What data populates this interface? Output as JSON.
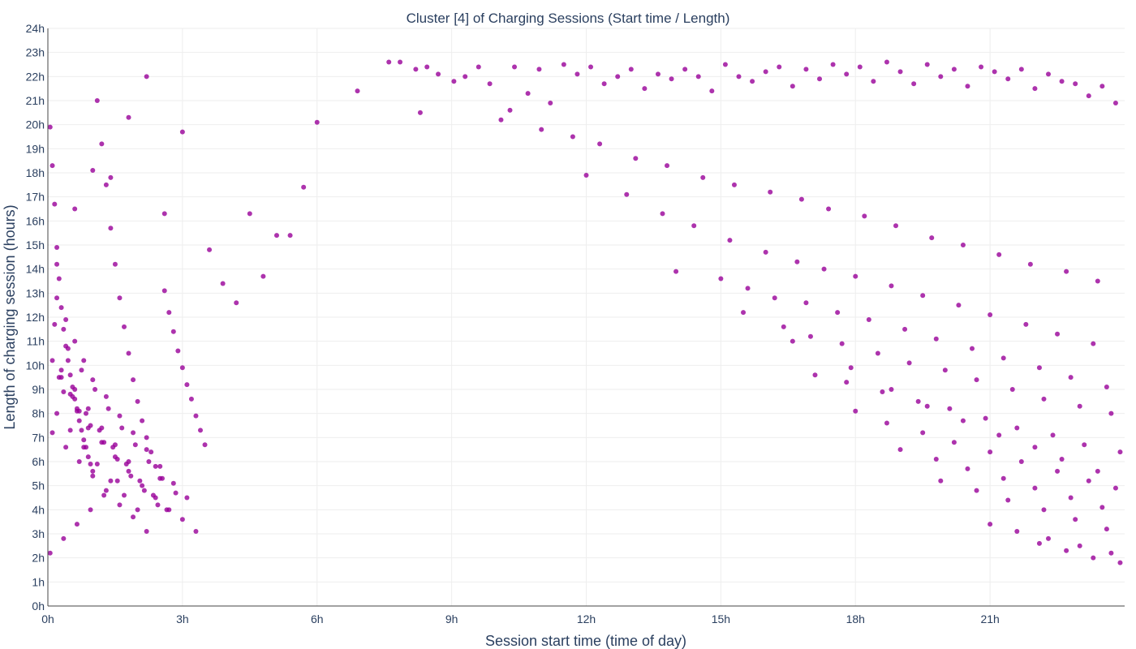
{
  "chart_data": {
    "type": "scatter",
    "title": "Cluster [4] of Charging Sessions (Start time / Length)",
    "xlabel": "Session start time (time of day)",
    "ylabel": "Length of charging session (hours)",
    "xlim": [
      0,
      24
    ],
    "ylim": [
      0,
      24
    ],
    "x_ticks": [
      {
        "value": 0,
        "label": "0h"
      },
      {
        "value": 3,
        "label": "3h"
      },
      {
        "value": 6,
        "label": "6h"
      },
      {
        "value": 9,
        "label": "9h"
      },
      {
        "value": 12,
        "label": "12h"
      },
      {
        "value": 15,
        "label": "15h"
      },
      {
        "value": 18,
        "label": "18h"
      },
      {
        "value": 21,
        "label": "21h"
      }
    ],
    "y_ticks": [
      {
        "value": 0,
        "label": "0h"
      },
      {
        "value": 1,
        "label": "1h"
      },
      {
        "value": 2,
        "label": "2h"
      },
      {
        "value": 3,
        "label": "3h"
      },
      {
        "value": 4,
        "label": "4h"
      },
      {
        "value": 5,
        "label": "5h"
      },
      {
        "value": 6,
        "label": "6h"
      },
      {
        "value": 7,
        "label": "7h"
      },
      {
        "value": 8,
        "label": "8h"
      },
      {
        "value": 9,
        "label": "9h"
      },
      {
        "value": 10,
        "label": "10h"
      },
      {
        "value": 11,
        "label": "11h"
      },
      {
        "value": 12,
        "label": "12h"
      },
      {
        "value": 13,
        "label": "13h"
      },
      {
        "value": 14,
        "label": "14h"
      },
      {
        "value": 15,
        "label": "15h"
      },
      {
        "value": 16,
        "label": "16h"
      },
      {
        "value": 17,
        "label": "17h"
      },
      {
        "value": 18,
        "label": "18h"
      },
      {
        "value": 19,
        "label": "19h"
      },
      {
        "value": 20,
        "label": "20h"
      },
      {
        "value": 21,
        "label": "21h"
      },
      {
        "value": 22,
        "label": "22h"
      },
      {
        "value": 23,
        "label": "23h"
      },
      {
        "value": 24,
        "label": "24h"
      }
    ],
    "grid": true,
    "marker_color": "#990099",
    "series": [
      {
        "x": [
          7.6,
          7.85,
          8.2,
          8.45,
          8.7,
          9.05,
          9.3,
          9.6,
          9.85,
          10.1,
          10.4,
          10.7,
          10.95,
          11.2,
          11.5,
          11.8,
          12.1,
          12.4,
          12.7,
          13.0,
          13.3,
          13.6,
          13.9,
          14.2,
          14.5,
          14.8,
          15.1,
          15.4,
          15.7,
          16.0,
          16.3,
          16.6,
          16.9,
          17.2,
          17.5,
          17.8,
          18.1,
          18.4,
          18.7,
          19.0,
          19.3,
          19.6,
          19.9,
          20.2,
          20.5,
          20.8,
          21.1,
          21.4,
          21.7,
          22.0,
          22.3,
          22.6,
          22.9,
          23.2,
          23.5,
          23.8,
          10.3,
          11.0,
          11.7,
          12.3,
          13.1,
          13.8,
          14.6,
          15.3,
          16.1,
          16.8,
          17.4,
          18.2,
          18.9,
          19.7,
          20.4,
          21.2,
          21.9,
          22.7,
          23.4,
          12.0,
          12.9,
          13.7,
          14.4,
          15.2,
          16.0,
          16.7,
          17.3,
          18.0,
          18.8,
          19.5,
          20.3,
          21.0,
          21.8,
          22.5,
          23.3,
          15.0,
          15.6,
          16.2,
          16.9,
          17.6,
          18.3,
          19.1,
          19.8,
          20.6,
          21.3,
          22.1,
          22.8,
          23.6,
          16.4,
          17.0,
          17.7,
          18.5,
          19.2,
          20.0,
          20.7,
          21.5,
          22.2,
          23.0,
          23.7,
          17.1,
          17.8,
          18.6,
          19.4,
          20.1,
          20.9,
          21.6,
          22.4,
          23.1,
          23.9,
          18.0,
          18.7,
          19.5,
          20.2,
          21.0,
          21.7,
          22.5,
          23.2,
          23.8,
          19.0,
          19.8,
          20.5,
          21.3,
          22.0,
          22.8,
          23.5,
          19.9,
          20.7,
          21.4,
          22.2,
          22.9,
          23.6,
          21.0,
          21.6,
          22.3,
          23.0,
          23.7,
          22.1,
          22.7,
          23.3,
          23.9,
          14.0,
          15.5,
          16.6,
          17.9,
          18.8,
          19.6,
          20.4,
          21.2,
          22.0,
          22.6,
          23.4,
          0.05,
          0.1,
          0.15,
          0.2,
          0.25,
          0.3,
          0.35,
          0.4,
          0.45,
          0.5,
          0.55,
          0.6,
          0.65,
          0.7,
          0.75,
          0.8,
          0.85,
          0.9,
          0.95,
          1.0,
          1.1,
          1.2,
          1.3,
          1.4,
          1.5,
          1.6,
          1.7,
          1.8,
          1.9,
          2.0,
          2.1,
          2.2,
          2.3,
          2.4,
          2.5,
          2.6,
          2.7,
          2.8,
          2.9,
          3.0,
          3.1,
          3.2,
          3.3,
          3.4,
          3.5,
          0.1,
          0.3,
          0.5,
          0.7,
          0.9,
          1.2,
          1.5,
          1.8,
          2.1,
          2.4,
          2.7,
          3.0,
          3.3,
          0.2,
          0.4,
          0.6,
          0.8,
          1.0,
          1.3,
          1.6,
          1.9,
          2.2,
          2.5,
          2.8,
          3.1,
          0.15,
          0.45,
          0.75,
          1.05,
          1.35,
          1.65,
          1.95,
          2.25,
          2.55,
          2.85,
          0.25,
          0.55,
          0.85,
          1.15,
          1.45,
          1.75,
          2.05,
          2.35,
          2.65,
          0.35,
          0.65,
          0.95,
          1.25,
          1.55,
          1.85,
          2.15,
          2.45,
          0.1,
          0.4,
          0.7,
          1.0,
          1.3,
          1.6,
          1.9,
          2.2,
          0.2,
          0.5,
          0.8,
          1.1,
          1.4,
          1.7,
          2.0,
          0.3,
          0.6,
          0.9,
          1.2,
          1.5,
          1.8,
          0.05,
          0.35,
          0.65,
          0.95,
          1.25,
          1.55,
          3.6,
          3.9,
          4.2,
          4.5,
          4.8,
          5.1,
          5.4,
          5.7,
          6.0,
          6.9,
          8.3,
          0.2,
          0.6,
          1.0,
          1.4,
          1.8,
          2.2,
          2.6,
          3.0
        ],
        "y": [
          22.6,
          22.6,
          22.3,
          22.4,
          22.1,
          21.8,
          22.0,
          22.4,
          21.7,
          20.2,
          22.4,
          21.3,
          22.3,
          20.9,
          22.5,
          22.1,
          22.4,
          21.7,
          22.0,
          22.3,
          21.5,
          22.1,
          21.9,
          22.3,
          22.0,
          21.4,
          22.5,
          22.0,
          21.8,
          22.2,
          22.4,
          21.6,
          22.3,
          21.9,
          22.5,
          22.1,
          22.4,
          21.8,
          22.6,
          22.2,
          21.7,
          22.5,
          22.0,
          22.3,
          21.6,
          22.4,
          22.2,
          21.9,
          22.3,
          21.5,
          22.1,
          21.8,
          21.7,
          21.2,
          21.6,
          20.9,
          20.6,
          19.8,
          19.5,
          19.2,
          18.6,
          18.3,
          17.8,
          17.5,
          17.2,
          16.9,
          16.5,
          16.2,
          15.8,
          15.3,
          15.0,
          14.6,
          14.2,
          13.9,
          13.5,
          17.9,
          17.1,
          16.3,
          15.8,
          15.2,
          14.7,
          14.3,
          14.0,
          13.7,
          13.3,
          12.9,
          12.5,
          12.1,
          11.7,
          11.3,
          10.9,
          13.6,
          13.2,
          12.8,
          12.6,
          12.2,
          11.9,
          11.5,
          11.1,
          10.7,
          10.3,
          9.9,
          9.5,
          9.1,
          11.6,
          11.2,
          10.9,
          10.5,
          10.1,
          9.8,
          9.4,
          9.0,
          8.6,
          8.3,
          8.0,
          9.6,
          9.3,
          8.9,
          8.5,
          8.2,
          7.8,
          7.4,
          7.1,
          6.7,
          6.4,
          8.1,
          7.6,
          7.2,
          6.8,
          6.4,
          6.0,
          5.6,
          5.2,
          4.9,
          6.5,
          6.1,
          5.7,
          5.3,
          4.9,
          4.5,
          4.1,
          5.2,
          4.8,
          4.4,
          4.0,
          3.6,
          3.2,
          3.4,
          3.1,
          2.8,
          2.5,
          2.2,
          2.6,
          2.3,
          2.0,
          1.8,
          13.9,
          12.2,
          11.0,
          9.9,
          9.0,
          8.3,
          7.7,
          7.1,
          6.6,
          6.1,
          5.6,
          19.9,
          18.3,
          16.7,
          14.9,
          13.6,
          12.4,
          11.5,
          10.8,
          10.2,
          9.6,
          9.1,
          8.6,
          8.1,
          7.7,
          7.3,
          6.9,
          6.6,
          6.2,
          5.9,
          5.6,
          21.0,
          19.2,
          17.5,
          15.7,
          14.2,
          12.8,
          11.6,
          10.5,
          9.4,
          8.5,
          7.7,
          7.0,
          6.4,
          5.8,
          5.3,
          13.1,
          12.2,
          11.4,
          10.6,
          9.9,
          9.2,
          8.6,
          7.9,
          7.3,
          6.7,
          10.2,
          9.5,
          8.8,
          8.1,
          7.4,
          6.8,
          6.2,
          5.6,
          5.0,
          4.5,
          4.0,
          3.6,
          3.1,
          12.8,
          11.9,
          11.0,
          10.2,
          9.4,
          8.7,
          7.9,
          7.2,
          6.5,
          5.8,
          5.1,
          4.5,
          11.7,
          10.7,
          9.8,
          9.0,
          8.2,
          7.4,
          6.7,
          6.0,
          5.3,
          4.7,
          9.5,
          8.7,
          8.0,
          7.3,
          6.6,
          5.9,
          5.2,
          4.6,
          4.0,
          8.9,
          8.2,
          7.5,
          6.8,
          6.1,
          5.4,
          4.8,
          4.2,
          7.2,
          6.6,
          6.0,
          5.4,
          4.8,
          4.2,
          3.7,
          3.1,
          8.0,
          7.3,
          6.6,
          5.9,
          5.2,
          4.6,
          4.0,
          9.8,
          9.0,
          8.2,
          7.4,
          6.7,
          6.0,
          2.2,
          2.8,
          3.4,
          4.0,
          4.6,
          5.2,
          14.8,
          13.4,
          12.6,
          16.3,
          13.7,
          15.4,
          15.4,
          17.4,
          20.1,
          21.4,
          20.5,
          14.2,
          16.5,
          18.1,
          17.8,
          20.3,
          22.0,
          16.3,
          19.7
        ]
      }
    ]
  }
}
